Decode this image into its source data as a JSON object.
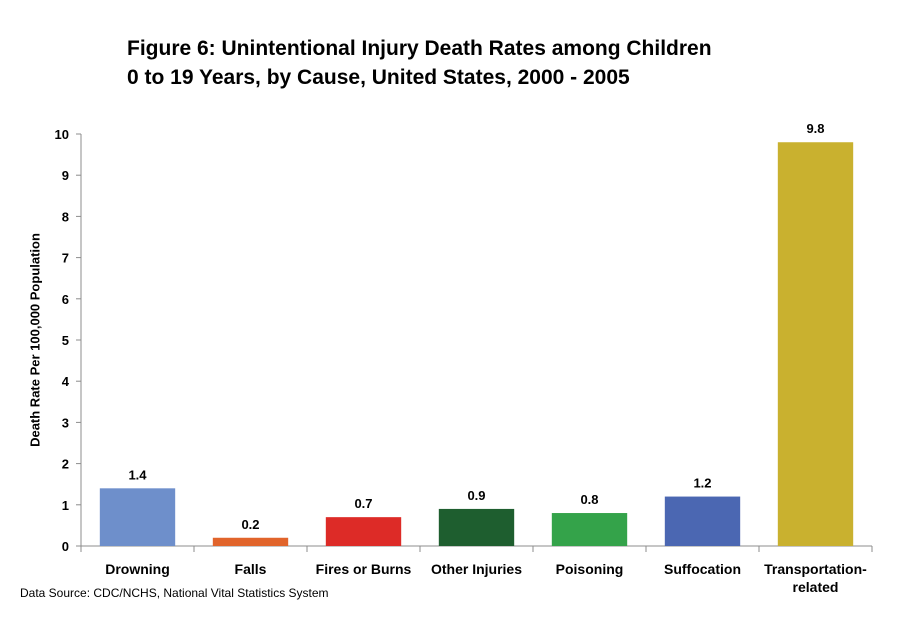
{
  "title_line1": "Figure 6: Unintentional Injury Death Rates among Children",
  "title_line2": "0 to 19 Years, by Cause, United States, 2000 - 2005",
  "source": "Data Source: CDC/NCHS, National Vital Statistics System",
  "chart_data": {
    "type": "bar",
    "title": "Figure 6: Unintentional Injury Death Rates among Children 0 to 19 Years, by Cause, United States, 2000 - 2005",
    "xlabel": "",
    "ylabel": "Death Rate Per 100,000 Population",
    "ylim": [
      0,
      10
    ],
    "yticks": [
      0,
      1,
      2,
      3,
      4,
      5,
      6,
      7,
      8,
      9,
      10
    ],
    "grid": false,
    "categories": [
      [
        "Drowning"
      ],
      [
        "Falls"
      ],
      [
        "Fires or Burns"
      ],
      [
        "Other Injuries"
      ],
      [
        "Poisoning"
      ],
      [
        "Suffocation"
      ],
      [
        "Transportation-",
        "related"
      ]
    ],
    "values": [
      1.4,
      0.2,
      0.7,
      0.9,
      0.8,
      1.2,
      9.8
    ],
    "data_labels": [
      "1.4",
      "0.2",
      "0.7",
      "0.9",
      "0.8",
      "1.2",
      "9.8"
    ],
    "colors": [
      "#6E8FCB",
      "#E1642B",
      "#DD2B27",
      "#1E5E2F",
      "#34A34A",
      "#4B67B2",
      "#C9B12F"
    ]
  }
}
